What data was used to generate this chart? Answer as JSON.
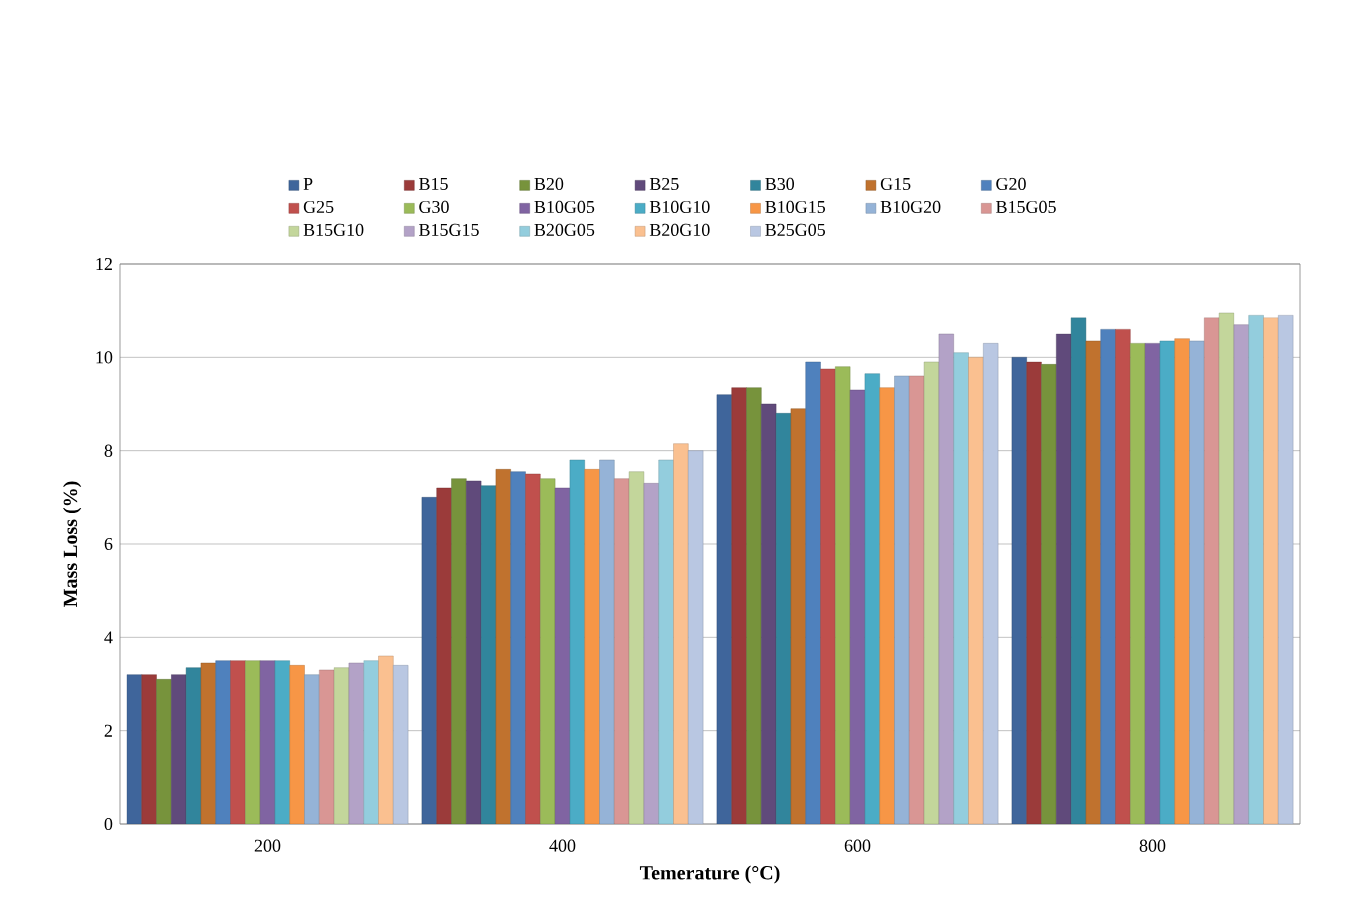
{
  "chart_data": {
    "type": "bar",
    "xlabel": "Temerature (°C)",
    "ylabel": "Mass Loss (%)",
    "categories": [
      "200",
      "400",
      "600",
      "800"
    ],
    "ylim": [
      0,
      12
    ],
    "yticks": [
      0,
      2,
      4,
      6,
      8,
      10,
      12
    ],
    "grid": "y",
    "legend": "top",
    "series": [
      {
        "name": "P",
        "color": "#3f659b",
        "values": [
          3.2,
          7.0,
          9.2,
          10.0
        ]
      },
      {
        "name": "B15",
        "color": "#9b3b3a",
        "values": [
          3.2,
          7.2,
          9.35,
          9.9
        ]
      },
      {
        "name": "B20",
        "color": "#77933c",
        "values": [
          3.1,
          7.4,
          9.35,
          9.85
        ]
      },
      {
        "name": "B25",
        "color": "#604a7b",
        "values": [
          3.2,
          7.35,
          9.0,
          10.5
        ]
      },
      {
        "name": "B30",
        "color": "#31859c",
        "values": [
          3.35,
          7.25,
          8.8,
          10.85
        ]
      },
      {
        "name": "G15",
        "color": "#c0722e",
        "values": [
          3.45,
          7.6,
          8.9,
          10.35
        ]
      },
      {
        "name": "G20",
        "color": "#4f81bd",
        "values": [
          3.5,
          7.55,
          9.9,
          10.6
        ]
      },
      {
        "name": "G25",
        "color": "#c0504d",
        "values": [
          3.5,
          7.5,
          9.75,
          10.6
        ]
      },
      {
        "name": "G30",
        "color": "#9bbb59",
        "values": [
          3.5,
          7.4,
          9.8,
          10.3
        ]
      },
      {
        "name": "B10G05",
        "color": "#8064a2",
        "values": [
          3.5,
          7.2,
          9.3,
          10.3
        ]
      },
      {
        "name": "B10G10",
        "color": "#4bacc6",
        "values": [
          3.5,
          7.8,
          9.65,
          10.35
        ]
      },
      {
        "name": "B10G15",
        "color": "#f79646",
        "values": [
          3.4,
          7.6,
          9.35,
          10.4
        ]
      },
      {
        "name": "B10G20",
        "color": "#95b3d7",
        "values": [
          3.2,
          7.8,
          9.6,
          10.35
        ]
      },
      {
        "name": "B15G05",
        "color": "#d99694",
        "values": [
          3.3,
          7.4,
          9.6,
          10.85
        ]
      },
      {
        "name": "B15G10",
        "color": "#c3d69b",
        "values": [
          3.35,
          7.55,
          9.9,
          10.95
        ]
      },
      {
        "name": "B15G15",
        "color": "#b3a2c7",
        "values": [
          3.45,
          7.3,
          10.5,
          10.7
        ]
      },
      {
        "name": "B20G05",
        "color": "#93cddd",
        "values": [
          3.5,
          7.8,
          10.1,
          10.9
        ]
      },
      {
        "name": "B20G10",
        "color": "#fac090",
        "values": [
          3.6,
          8.15,
          10.0,
          10.85
        ]
      },
      {
        "name": "B25G05",
        "color": "#b9c7e2",
        "values": [
          3.4,
          8.0,
          10.3,
          10.9
        ]
      }
    ]
  }
}
